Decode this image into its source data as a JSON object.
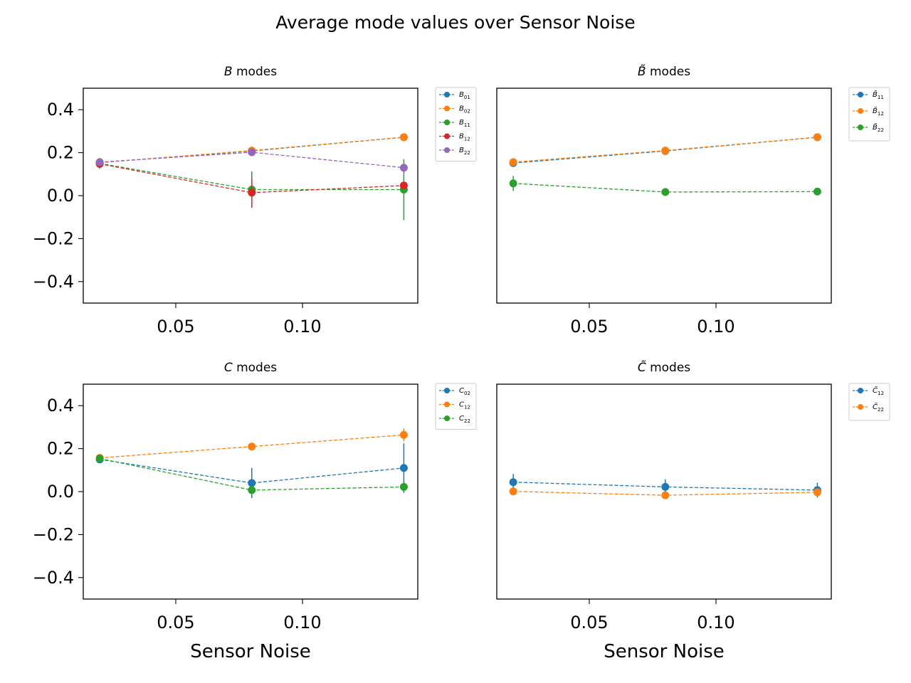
{
  "figure": {
    "title": "Average mode values over Sensor Noise"
  },
  "chart_data": [
    {
      "type": "line",
      "title_symbol": "B",
      "title_suffix": "modes",
      "xlabel": "",
      "xticks": [
        "0.05",
        "0.10"
      ],
      "xtick_values": [
        0.05,
        0.1
      ],
      "yticks": [
        "0.4",
        "0.2",
        "0.0",
        "−0.2",
        "−0.4"
      ],
      "ytick_values": [
        0.4,
        0.2,
        0.0,
        -0.2,
        -0.4
      ],
      "show_yticklabels": true,
      "xlim": [
        0.0135,
        0.1455
      ],
      "ylim": [
        -0.5,
        0.5
      ],
      "legend_position": "outside-right-top",
      "x": [
        0.02,
        0.08,
        0.14
      ],
      "series": [
        {
          "name": "B",
          "sub": "01",
          "tilde": false,
          "color": "#1f77b4",
          "values": [
            0.154,
            0.208,
            0.272
          ],
          "errors": [
            0.004,
            0.004,
            0.004
          ]
        },
        {
          "name": "B",
          "sub": "02",
          "tilde": false,
          "color": "#ff7f0e",
          "values": [
            0.154,
            0.21,
            0.272
          ],
          "errors": [
            0.004,
            0.004,
            0.004
          ]
        },
        {
          "name": "B",
          "sub": "11",
          "tilde": false,
          "color": "#2ca02c",
          "values": [
            0.15,
            0.028,
            0.028
          ],
          "errors": [
            0.025,
            0.085,
            0.142
          ]
        },
        {
          "name": "B",
          "sub": "12",
          "tilde": false,
          "color": "#d62728",
          "values": [
            0.148,
            0.014,
            0.047
          ],
          "errors": [
            0.018,
            0.07,
            0.01
          ]
        },
        {
          "name": "B",
          "sub": "22",
          "tilde": false,
          "color": "#9467bd",
          "values": [
            0.156,
            0.202,
            0.13
          ],
          "errors": [
            0.006,
            0.006,
            0.006
          ]
        }
      ]
    },
    {
      "type": "line",
      "title_symbol": "B",
      "title_tilde": true,
      "title_suffix": "modes",
      "xlabel": "",
      "xticks": [
        "0.05",
        "0.10"
      ],
      "xtick_values": [
        0.05,
        0.1
      ],
      "yticks": [],
      "ytick_values": [],
      "show_yticklabels": false,
      "xlim": [
        0.0135,
        0.1455
      ],
      "ylim": [
        -0.5,
        0.5
      ],
      "legend_position": "outside-right-top",
      "x": [
        0.02,
        0.08,
        0.14
      ],
      "series": [
        {
          "name": "B",
          "sub": "11",
          "tilde": true,
          "color": "#1f77b4",
          "values": [
            0.152,
            0.208,
            0.272
          ],
          "errors": [
            0.004,
            0.004,
            0.004
          ]
        },
        {
          "name": "B",
          "sub": "12",
          "tilde": true,
          "color": "#ff7f0e",
          "values": [
            0.156,
            0.21,
            0.272
          ],
          "errors": [
            0.004,
            0.004,
            0.004
          ]
        },
        {
          "name": "B",
          "sub": "22",
          "tilde": true,
          "color": "#2ca02c",
          "values": [
            0.057,
            0.017,
            0.019
          ],
          "errors": [
            0.035,
            0.012,
            0.006
          ]
        }
      ]
    },
    {
      "type": "line",
      "title_symbol": "C",
      "title_suffix": "modes",
      "xlabel": "Sensor Noise",
      "xticks": [
        "0.05",
        "0.10"
      ],
      "xtick_values": [
        0.05,
        0.1
      ],
      "yticks": [
        "0.4",
        "0.2",
        "0.0",
        "−0.2",
        "−0.4"
      ],
      "ytick_values": [
        0.4,
        0.2,
        0.0,
        -0.2,
        -0.4
      ],
      "show_yticklabels": true,
      "xlim": [
        0.0135,
        0.1455
      ],
      "ylim": [
        -0.5,
        0.5
      ],
      "legend_position": "outside-right-top",
      "x": [
        0.02,
        0.08,
        0.14
      ],
      "series": [
        {
          "name": "C",
          "sub": "02",
          "tilde": false,
          "color": "#1f77b4",
          "values": [
            0.15,
            0.04,
            0.11
          ],
          "errors": [
            0.015,
            0.07,
            0.115
          ]
        },
        {
          "name": "C",
          "sub": "12",
          "tilde": false,
          "color": "#ff7f0e",
          "values": [
            0.157,
            0.21,
            0.264
          ],
          "errors": [
            0.004,
            0.004,
            0.03
          ]
        },
        {
          "name": "C",
          "sub": "22",
          "tilde": false,
          "color": "#2ca02c",
          "values": [
            0.154,
            0.007,
            0.022
          ],
          "errors": [
            0.008,
            0.02,
            0.028
          ]
        }
      ]
    },
    {
      "type": "line",
      "title_symbol": "C",
      "title_tilde": true,
      "title_suffix": "modes",
      "xlabel": "Sensor Noise",
      "xticks": [
        "0.05",
        "0.10"
      ],
      "xtick_values": [
        0.05,
        0.1
      ],
      "yticks": [],
      "ytick_values": [],
      "show_yticklabels": false,
      "xlim": [
        0.0135,
        0.1455
      ],
      "ylim": [
        -0.5,
        0.5
      ],
      "legend_position": "outside-right-top",
      "x": [
        0.02,
        0.08,
        0.14
      ],
      "series": [
        {
          "name": "C",
          "sub": "12",
          "tilde": true,
          "color": "#1f77b4",
          "values": [
            0.044,
            0.022,
            0.007
          ],
          "errors": [
            0.038,
            0.035,
            0.035
          ]
        },
        {
          "name": "C",
          "sub": "22",
          "tilde": true,
          "color": "#ff7f0e",
          "values": [
            0.001,
            -0.017,
            -0.003
          ],
          "errors": [
            0.004,
            0.01,
            0.004
          ]
        }
      ]
    }
  ]
}
